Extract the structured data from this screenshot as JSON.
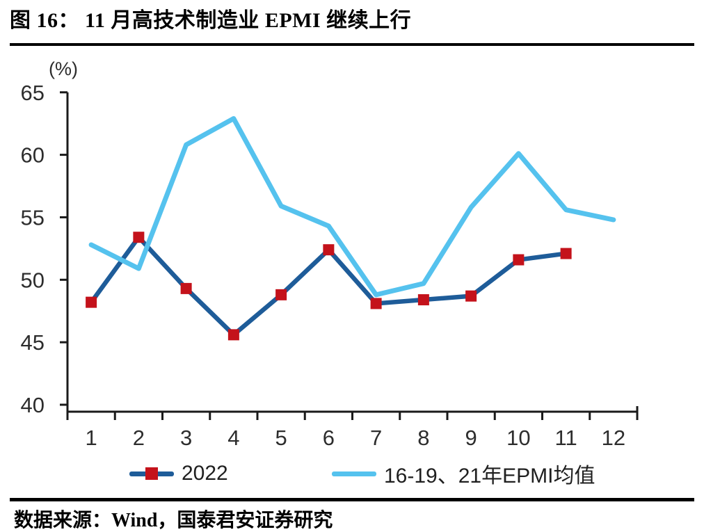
{
  "header": {
    "title": "图 16：  11 月高技术制造业 EPMI 继续上行"
  },
  "footer": {
    "source": "数据来源：Wind，国泰君安证券研究"
  },
  "colors": {
    "series_2022": "#1E5C99",
    "series_mean": "#55C2EE",
    "marker_red": "#C4121B",
    "axis": "#1a1a1a"
  },
  "chart_data": {
    "type": "line",
    "title": "图 16：11 月高技术制造业 EPMI 继续上行",
    "xlabel": "",
    "ylabel": "(%)",
    "ylim": [
      40,
      65
    ],
    "yticks": [
      40,
      45,
      50,
      55,
      60,
      65
    ],
    "x": [
      1,
      2,
      3,
      4,
      5,
      6,
      7,
      8,
      9,
      10,
      11,
      12
    ],
    "xticklabels": [
      "1",
      "2",
      "3",
      "4",
      "5",
      "6",
      "7",
      "8",
      "9",
      "10",
      "11",
      "12"
    ],
    "grid": false,
    "legend_position": "bottom",
    "series": [
      {
        "name": "2022",
        "color": "#1E5C99",
        "marker": "square",
        "marker_color": "#C4121B",
        "values": [
          48.2,
          53.4,
          49.3,
          45.6,
          48.8,
          52.4,
          48.1,
          48.4,
          48.7,
          51.6,
          52.1,
          null
        ]
      },
      {
        "name": "16-19、21年EPMI均值",
        "color": "#55C2EE",
        "marker": "none",
        "values": [
          52.8,
          50.9,
          60.8,
          62.9,
          55.9,
          54.3,
          48.8,
          49.7,
          55.8,
          60.1,
          55.6,
          54.8
        ]
      }
    ]
  }
}
